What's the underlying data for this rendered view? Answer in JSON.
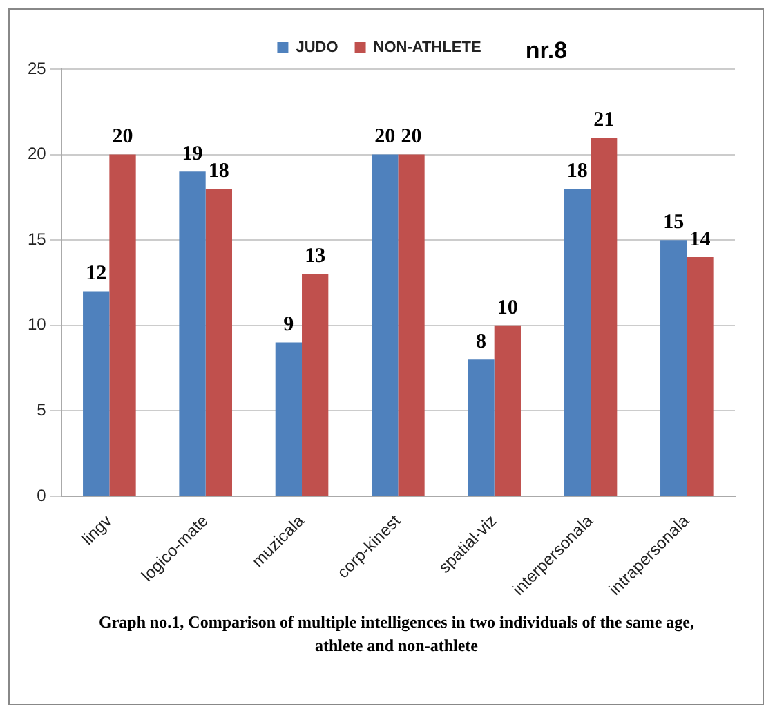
{
  "chart_data": {
    "type": "bar",
    "title": "nr.8",
    "categories": [
      "lingv",
      "logico-mate",
      "muzicala",
      "corp-kinest",
      "spatial-viz",
      "interpersonala",
      "intrapersonala"
    ],
    "series": [
      {
        "name": "JUDO",
        "color": "#4f81bd",
        "values": [
          12,
          19,
          9,
          20,
          8,
          18,
          15
        ]
      },
      {
        "name": "NON-ATHLETE",
        "color": "#c0504d",
        "values": [
          20,
          18,
          13,
          20,
          10,
          21,
          14
        ]
      }
    ],
    "ylim": [
      0,
      25
    ],
    "yticks": [
      0,
      5,
      10,
      15,
      20,
      25
    ],
    "grid": "y",
    "legend": "top",
    "data_labels": true,
    "annotations": [
      "Graph no.1, Comparison of multiple intelligences in two individuals  of the same age, athlete and non-athlete"
    ]
  }
}
